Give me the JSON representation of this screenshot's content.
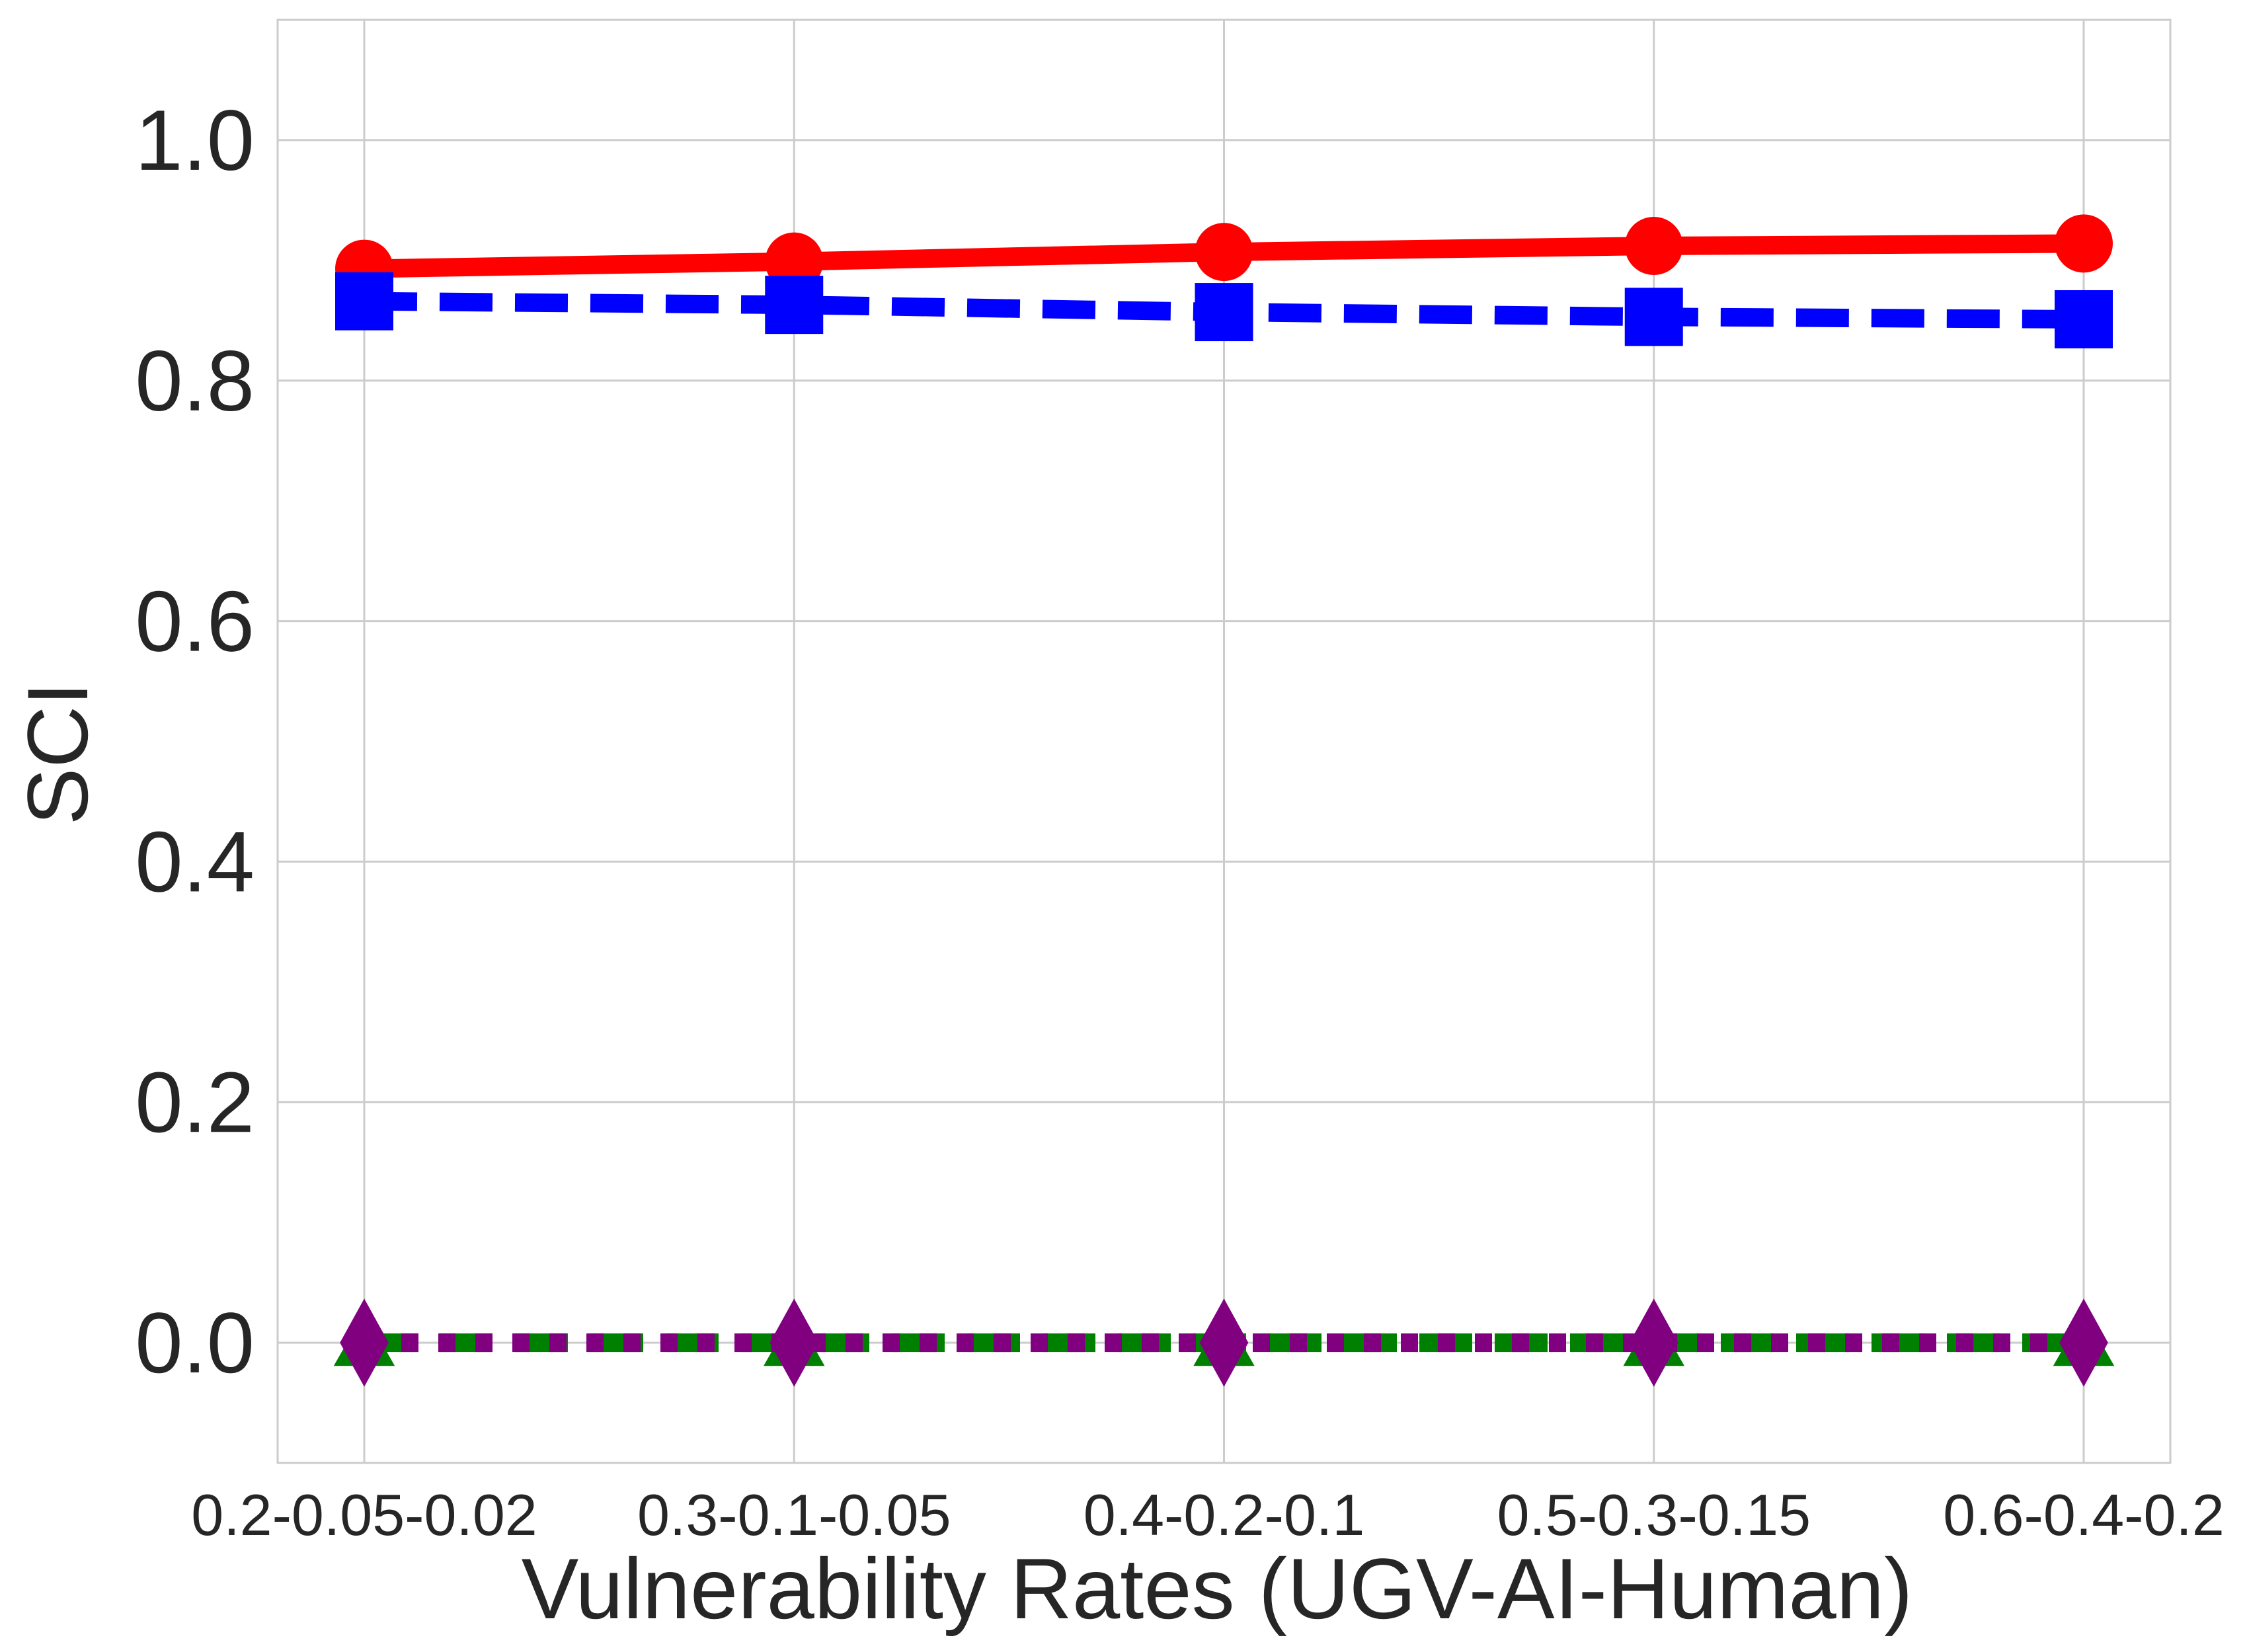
{
  "chart_data": {
    "type": "line",
    "title": "",
    "xlabel": "Vulnerability Rates (UGV-AI-Human)",
    "ylabel": "SCI",
    "categories": [
      "0.2-0.05-0.02",
      "0.3-0.1-0.05",
      "0.4-0.2-0.1",
      "0.5-0.3-0.15",
      "0.6-0.4-0.2"
    ],
    "ylim": [
      -0.1,
      1.1
    ],
    "yticks": [
      "0.0",
      "0.2",
      "0.4",
      "0.6",
      "0.8",
      "1.0"
    ],
    "ytick_values": [
      0.0,
      0.2,
      0.4,
      0.6,
      0.8,
      1.0
    ],
    "grid": true,
    "series": [
      {
        "values": [
          0.893,
          0.899,
          0.907,
          0.912,
          0.914
        ],
        "color": "#ff0000",
        "linestyle": "solid",
        "marker": "circle"
      },
      {
        "values": [
          0.866,
          0.863,
          0.857,
          0.853,
          0.851
        ],
        "color": "#0000ff",
        "linestyle": "dashed",
        "marker": "square"
      },
      {
        "values": [
          0.0,
          0.0,
          0.0,
          0.0,
          0.0
        ],
        "color": "#008000",
        "linestyle": "dashed",
        "marker": "triangle"
      },
      {
        "values": [
          0.0,
          0.0,
          0.0,
          0.0,
          0.0
        ],
        "color": "#800080",
        "linestyle": "dotted",
        "marker": "diamond"
      }
    ]
  }
}
